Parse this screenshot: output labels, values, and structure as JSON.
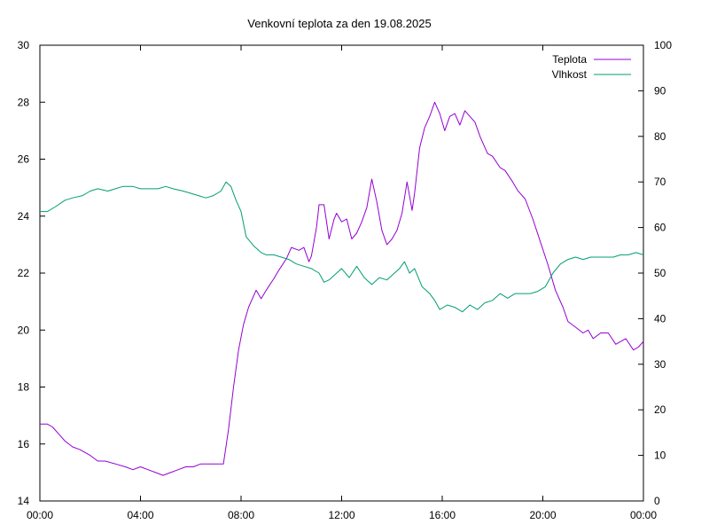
{
  "chart_data": {
    "type": "line",
    "title": "Venkovní teplota za den 19.08.2025",
    "xlabel": "",
    "ylabel": "",
    "y2label": "",
    "x_unit": "hours",
    "xlim": [
      0,
      24
    ],
    "ylim": [
      14,
      30
    ],
    "y2lim": [
      0,
      100
    ],
    "grid": false,
    "legend_position": "top-right",
    "x_ticks": [
      {
        "value": 0,
        "label": "00:00"
      },
      {
        "value": 4,
        "label": "04:00"
      },
      {
        "value": 8,
        "label": "08:00"
      },
      {
        "value": 12,
        "label": "12:00"
      },
      {
        "value": 16,
        "label": "16:00"
      },
      {
        "value": 20,
        "label": "20:00"
      },
      {
        "value": 24,
        "label": "00:00"
      }
    ],
    "y_ticks": [
      14,
      16,
      18,
      20,
      22,
      24,
      26,
      28,
      30
    ],
    "y2_ticks": [
      0,
      10,
      20,
      30,
      40,
      50,
      60,
      70,
      80,
      90,
      100
    ],
    "series": [
      {
        "name": "Teplota",
        "axis": "left",
        "color": "#9400d3",
        "x": [
          0,
          0.3,
          0.5,
          0.8,
          1.0,
          1.3,
          1.6,
          2.0,
          2.3,
          2.6,
          3.0,
          3.4,
          3.7,
          4.0,
          4.3,
          4.6,
          4.9,
          5.2,
          5.5,
          5.8,
          6.1,
          6.4,
          6.7,
          7.0,
          7.3,
          7.5,
          7.7,
          7.9,
          8.1,
          8.3,
          8.6,
          8.8,
          9.0,
          9.3,
          9.5,
          9.8,
          10.0,
          10.3,
          10.5,
          10.7,
          10.8,
          11.0,
          11.1,
          11.3,
          11.5,
          11.7,
          11.8,
          12.0,
          12.2,
          12.4,
          12.6,
          12.8,
          13.0,
          13.2,
          13.4,
          13.6,
          13.8,
          14.0,
          14.2,
          14.4,
          14.6,
          14.8,
          14.9,
          15.1,
          15.3,
          15.5,
          15.7,
          15.9,
          16.1,
          16.3,
          16.5,
          16.7,
          16.9,
          17.1,
          17.3,
          17.5,
          17.8,
          18.0,
          18.3,
          18.5,
          18.8,
          19.0,
          19.3,
          19.6,
          19.9,
          20.2,
          20.5,
          20.8,
          21.0,
          21.3,
          21.6,
          21.8,
          22.0,
          22.3,
          22.6,
          22.9,
          23.1,
          23.3,
          23.6,
          23.8,
          24.0
        ],
        "y": [
          16.7,
          16.7,
          16.6,
          16.3,
          16.1,
          15.9,
          15.8,
          15.6,
          15.4,
          15.4,
          15.3,
          15.2,
          15.1,
          15.2,
          15.1,
          15.0,
          14.9,
          15.0,
          15.1,
          15.2,
          15.2,
          15.3,
          15.3,
          15.3,
          15.3,
          16.5,
          18.0,
          19.3,
          20.2,
          20.8,
          21.4,
          21.1,
          21.4,
          21.8,
          22.1,
          22.5,
          22.9,
          22.8,
          22.9,
          22.4,
          22.6,
          23.6,
          24.4,
          24.4,
          23.2,
          23.9,
          24.1,
          23.8,
          23.9,
          23.2,
          23.4,
          23.8,
          24.3,
          25.3,
          24.5,
          23.5,
          23.0,
          23.2,
          23.5,
          24.1,
          25.2,
          24.2,
          24.8,
          26.4,
          27.1,
          27.5,
          28.0,
          27.6,
          27.0,
          27.5,
          27.6,
          27.2,
          27.7,
          27.5,
          27.3,
          26.8,
          26.2,
          26.1,
          25.7,
          25.6,
          25.2,
          24.9,
          24.6,
          23.9,
          23.1,
          22.3,
          21.4,
          20.8,
          20.3,
          20.1,
          19.9,
          20.0,
          19.7,
          19.9,
          19.9,
          19.5,
          19.6,
          19.7,
          19.3,
          19.4,
          19.6
        ]
      },
      {
        "name": "Vlhkost",
        "axis": "right",
        "color": "#009e73",
        "x": [
          0,
          0.3,
          0.6,
          1.0,
          1.3,
          1.7,
          2.0,
          2.3,
          2.7,
          3.0,
          3.3,
          3.7,
          4.0,
          4.3,
          4.7,
          5.0,
          5.3,
          5.7,
          6.0,
          6.3,
          6.6,
          6.9,
          7.2,
          7.4,
          7.6,
          7.8,
          8.0,
          8.2,
          8.5,
          8.8,
          9.0,
          9.3,
          9.6,
          9.9,
          10.2,
          10.5,
          10.8,
          11.1,
          11.3,
          11.5,
          11.8,
          12.0,
          12.3,
          12.6,
          12.9,
          13.2,
          13.5,
          13.8,
          14.1,
          14.3,
          14.5,
          14.7,
          14.9,
          15.2,
          15.5,
          15.7,
          15.9,
          16.2,
          16.5,
          16.8,
          17.1,
          17.4,
          17.7,
          18.0,
          18.3,
          18.6,
          18.9,
          19.2,
          19.5,
          19.8,
          20.1,
          20.4,
          20.7,
          21.0,
          21.3,
          21.6,
          21.9,
          22.2,
          22.5,
          22.8,
          23.1,
          23.4,
          23.7,
          24.0
        ],
        "y": [
          63.5,
          63.5,
          64.5,
          66.0,
          66.5,
          67.0,
          68.0,
          68.5,
          68.0,
          68.5,
          69.0,
          69.0,
          68.5,
          68.5,
          68.5,
          69.0,
          68.5,
          68.0,
          67.5,
          67.0,
          66.5,
          67.0,
          68.0,
          70.0,
          69.0,
          66.0,
          63.5,
          58.0,
          56.0,
          54.5,
          54.0,
          54.0,
          53.5,
          53.0,
          52.0,
          51.5,
          51.0,
          50.0,
          48.0,
          48.5,
          50.0,
          51.0,
          49.0,
          51.5,
          49.0,
          47.5,
          49.0,
          48.5,
          50.0,
          51.0,
          52.5,
          50.0,
          51.0,
          47.0,
          45.5,
          44.0,
          42.0,
          43.0,
          42.5,
          41.5,
          43.0,
          42.0,
          43.5,
          44.0,
          45.5,
          44.5,
          45.5,
          45.5,
          45.5,
          46.0,
          47.0,
          50.0,
          52.0,
          53.0,
          53.5,
          53.0,
          53.5,
          53.5,
          53.5,
          53.5,
          54.0,
          54.0,
          54.5,
          54.0
        ]
      }
    ]
  }
}
